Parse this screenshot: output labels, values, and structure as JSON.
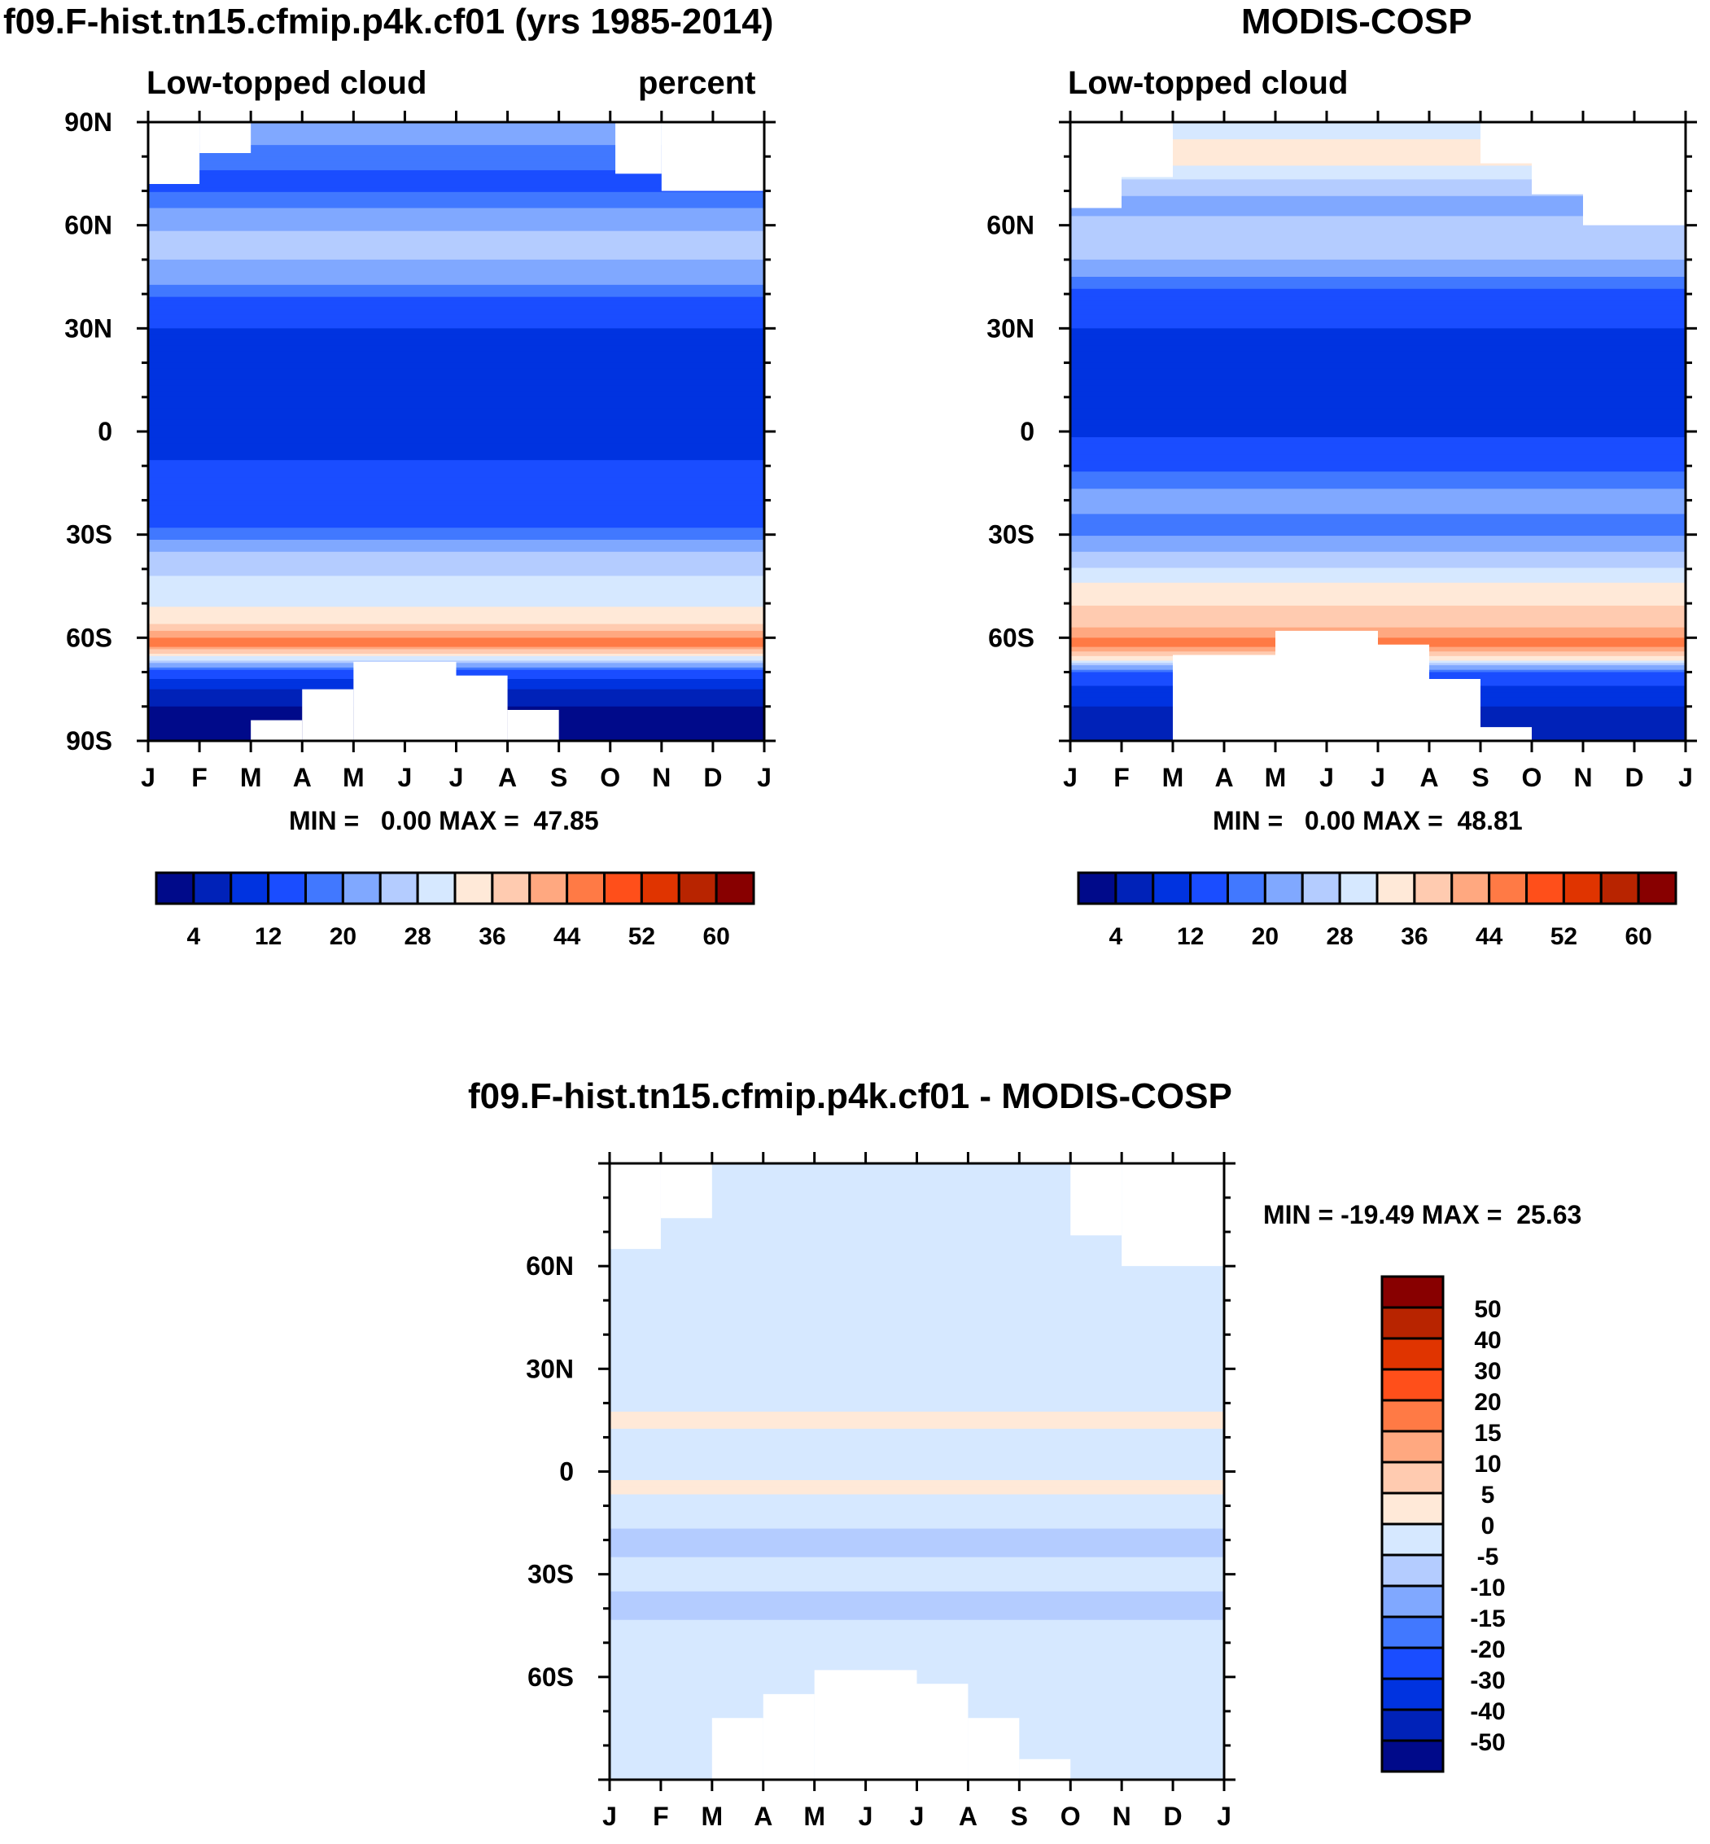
{
  "chart_data": [
    {
      "type": "heatmap",
      "title": "f09.F-hist.tn15.cfmip.p4k.cf01 (yrs 1985-2014)",
      "left_string": "Low-topped cloud",
      "right_string": "percent",
      "x_ticks": [
        "J",
        "F",
        "M",
        "A",
        "M",
        "J",
        "J",
        "A",
        "S",
        "O",
        "N",
        "D",
        "J"
      ],
      "y_ticks": [
        "90N",
        "60N",
        "30N",
        "0",
        "30S",
        "60S",
        "90S"
      ],
      "y_tick_values": [
        90,
        60,
        30,
        0,
        -30,
        -60,
        -90
      ],
      "ylim": [
        -90,
        90
      ],
      "min_max_text": "MIN =   0.00 MAX =  47.85",
      "min": 0.0,
      "max": 47.85,
      "colorbar_labels": [
        "4",
        "12",
        "20",
        "28",
        "36",
        "44",
        "52",
        "60"
      ],
      "lat_profile": [
        [
          90,
          24
        ],
        [
          80,
          18
        ],
        [
          72,
          14
        ],
        [
          65,
          20
        ],
        [
          55,
          26
        ],
        [
          45,
          22
        ],
        [
          38,
          14
        ],
        [
          30,
          12
        ],
        [
          20,
          9
        ],
        [
          10,
          10
        ],
        [
          0,
          8
        ],
        [
          -10,
          13
        ],
        [
          -20,
          12
        ],
        [
          -28,
          16
        ],
        [
          -35,
          24
        ],
        [
          -42,
          28
        ],
        [
          -50,
          31
        ],
        [
          -56,
          36
        ],
        [
          -62,
          47
        ],
        [
          -66,
          30
        ],
        [
          -70,
          14
        ],
        [
          -76,
          6
        ],
        [
          -84,
          2
        ],
        [
          -90,
          1
        ]
      ],
      "missing": [
        [
          [
            0,
            90
          ],
          [
            1,
            90
          ],
          [
            1,
            72
          ],
          [
            0,
            72
          ]
        ],
        [
          [
            1,
            90
          ],
          [
            2,
            90
          ],
          [
            2,
            81
          ],
          [
            1,
            81
          ]
        ],
        [
          [
            9.1,
            90
          ],
          [
            10,
            90
          ],
          [
            10,
            75
          ],
          [
            9.1,
            75
          ]
        ],
        [
          [
            10,
            90
          ],
          [
            12,
            90
          ],
          [
            12,
            70
          ],
          [
            10,
            70
          ]
        ],
        [
          [
            2,
            -90
          ],
          [
            3,
            -90
          ],
          [
            3,
            -84
          ],
          [
            2,
            -84
          ]
        ],
        [
          [
            3,
            -90
          ],
          [
            4,
            -90
          ],
          [
            4,
            -75
          ],
          [
            3,
            -75
          ]
        ],
        [
          [
            4,
            -90
          ],
          [
            6,
            -90
          ],
          [
            6,
            -67
          ],
          [
            4,
            -67
          ]
        ],
        [
          [
            6,
            -90
          ],
          [
            7,
            -90
          ],
          [
            7,
            -71
          ],
          [
            6,
            -71
          ]
        ],
        [
          [
            7,
            -90
          ],
          [
            8,
            -90
          ],
          [
            8,
            -81
          ],
          [
            7,
            -81
          ]
        ]
      ]
    },
    {
      "type": "heatmap",
      "title": "MODIS-COSP",
      "left_string": "Low-topped cloud",
      "x_ticks": [
        "J",
        "F",
        "M",
        "A",
        "M",
        "J",
        "J",
        "A",
        "S",
        "O",
        "N",
        "D",
        "J"
      ],
      "y_ticks": [
        "60N",
        "30N",
        "0",
        "30S",
        "60S"
      ],
      "y_tick_values": [
        60,
        30,
        0,
        -30,
        -60
      ],
      "ylim": [
        -90,
        90
      ],
      "min_max_text": "MIN =   0.00 MAX =  48.81",
      "min": 0.0,
      "max": 48.81,
      "colorbar_labels": [
        "4",
        "12",
        "20",
        "28",
        "36",
        "44",
        "52",
        "60"
      ],
      "lat_profile": [
        [
          90,
          30
        ],
        [
          80,
          34
        ],
        [
          72,
          26
        ],
        [
          65,
          22
        ],
        [
          58,
          27
        ],
        [
          50,
          24
        ],
        [
          45,
          20
        ],
        [
          38,
          12
        ],
        [
          30,
          12
        ],
        [
          20,
          10
        ],
        [
          10,
          8
        ],
        [
          0,
          11
        ],
        [
          -10,
          15
        ],
        [
          -20,
          22
        ],
        [
          -28,
          18
        ],
        [
          -35,
          24
        ],
        [
          -42,
          30
        ],
        [
          -48,
          35
        ],
        [
          -56,
          38
        ],
        [
          -62,
          46
        ],
        [
          -66,
          34
        ],
        [
          -70,
          16
        ],
        [
          -76,
          10
        ],
        [
          -84,
          6
        ],
        [
          -90,
          4
        ]
      ],
      "missing": [
        [
          [
            0,
            90
          ],
          [
            1,
            90
          ],
          [
            1,
            65
          ],
          [
            0,
            65
          ]
        ],
        [
          [
            1,
            90
          ],
          [
            2,
            90
          ],
          [
            2,
            74
          ],
          [
            1,
            74
          ]
        ],
        [
          [
            8,
            90
          ],
          [
            9,
            90
          ],
          [
            9,
            78
          ],
          [
            8,
            78
          ]
        ],
        [
          [
            9,
            90
          ],
          [
            10,
            90
          ],
          [
            10,
            69
          ],
          [
            9,
            69
          ]
        ],
        [
          [
            10,
            90
          ],
          [
            12,
            90
          ],
          [
            12,
            60
          ],
          [
            10,
            60
          ]
        ],
        [
          [
            2,
            -90
          ],
          [
            3,
            -90
          ],
          [
            3,
            -65
          ],
          [
            2,
            -65
          ]
        ],
        [
          [
            3,
            -90
          ],
          [
            4,
            -90
          ],
          [
            4,
            -65
          ],
          [
            3,
            -65
          ]
        ],
        [
          [
            4,
            -90
          ],
          [
            6,
            -90
          ],
          [
            6,
            -58
          ],
          [
            4,
            -58
          ]
        ],
        [
          [
            6,
            -90
          ],
          [
            7,
            -90
          ],
          [
            7,
            -62
          ],
          [
            6,
            -62
          ]
        ],
        [
          [
            7,
            -90
          ],
          [
            8,
            -90
          ],
          [
            8,
            -72
          ],
          [
            7,
            -72
          ]
        ],
        [
          [
            8,
            -90
          ],
          [
            9,
            -90
          ],
          [
            9,
            -86
          ],
          [
            8,
            -86
          ]
        ]
      ]
    },
    {
      "type": "heatmap",
      "title": "f09.F-hist.tn15.cfmip.p4k.cf01 - MODIS-COSP",
      "x_ticks": [
        "J",
        "F",
        "M",
        "A",
        "M",
        "J",
        "J",
        "A",
        "S",
        "O",
        "N",
        "D",
        "J"
      ],
      "y_ticks": [
        "60N",
        "30N",
        "0",
        "30S",
        "60S"
      ],
      "y_tick_values": [
        60,
        30,
        0,
        -30,
        -60
      ],
      "ylim": [
        -90,
        90
      ],
      "min_max_text": "MIN = -19.49 MAX =  25.63",
      "min": -19.49,
      "max": 25.63,
      "colorbar_labels": [
        "50",
        "40",
        "30",
        "20",
        "15",
        "10",
        "5",
        "0",
        "-5",
        "-10",
        "-15",
        "-20",
        "-30",
        "-40",
        "-50"
      ],
      "lat_profile": [
        [
          90,
          -3
        ],
        [
          80,
          -4
        ],
        [
          70,
          -3
        ],
        [
          60,
          -2
        ],
        [
          40,
          -2
        ],
        [
          20,
          -2
        ],
        [
          15,
          2
        ],
        [
          10,
          -2
        ],
        [
          0,
          -2
        ],
        [
          -5,
          2
        ],
        [
          -10,
          -3
        ],
        [
          -20,
          -6
        ],
        [
          -30,
          -4
        ],
        [
          -40,
          -6
        ],
        [
          -50,
          -3
        ],
        [
          -60,
          -4
        ],
        [
          -70,
          -3
        ],
        [
          -80,
          -2
        ],
        [
          -90,
          -2
        ]
      ],
      "missing": [
        [
          [
            0,
            90
          ],
          [
            1,
            90
          ],
          [
            1,
            65
          ],
          [
            0,
            65
          ]
        ],
        [
          [
            1,
            90
          ],
          [
            2,
            90
          ],
          [
            2,
            74
          ],
          [
            1,
            74
          ]
        ],
        [
          [
            9,
            90
          ],
          [
            10,
            90
          ],
          [
            10,
            69
          ],
          [
            9,
            69
          ]
        ],
        [
          [
            10,
            90
          ],
          [
            12,
            90
          ],
          [
            12,
            60
          ],
          [
            10,
            60
          ]
        ],
        [
          [
            2,
            -90
          ],
          [
            3,
            -90
          ],
          [
            3,
            -72
          ],
          [
            2,
            -72
          ]
        ],
        [
          [
            3,
            -90
          ],
          [
            4,
            -90
          ],
          [
            4,
            -65
          ],
          [
            3,
            -65
          ]
        ],
        [
          [
            4,
            -90
          ],
          [
            6,
            -90
          ],
          [
            6,
            -58
          ],
          [
            4,
            -58
          ]
        ],
        [
          [
            6,
            -90
          ],
          [
            7,
            -90
          ],
          [
            7,
            -62
          ],
          [
            6,
            -62
          ]
        ],
        [
          [
            7,
            -90
          ],
          [
            8,
            -90
          ],
          [
            8,
            -72
          ],
          [
            7,
            -72
          ]
        ],
        [
          [
            8,
            -90
          ],
          [
            9,
            -90
          ],
          [
            9,
            -84
          ],
          [
            8,
            -84
          ]
        ]
      ]
    }
  ],
  "colors": {
    "abs_levels": [
      4,
      8,
      12,
      16,
      20,
      24,
      28,
      32,
      36,
      40,
      44,
      48,
      52,
      56,
      60
    ],
    "diff_levels": [
      -50,
      -40,
      -30,
      -20,
      -15,
      -10,
      -5,
      0,
      5,
      10,
      15,
      20,
      30,
      40,
      50
    ],
    "palette": [
      "#000a8a",
      "#0022b8",
      "#0033e0",
      "#1a4dff",
      "#4178ff",
      "#80a8ff",
      "#b4ccff",
      "#d6e8ff",
      "#ffe9d8",
      "#ffcbb0",
      "#ffa880",
      "#ff7a45",
      "#ff4f1a",
      "#e03400",
      "#b82400",
      "#880000"
    ]
  }
}
